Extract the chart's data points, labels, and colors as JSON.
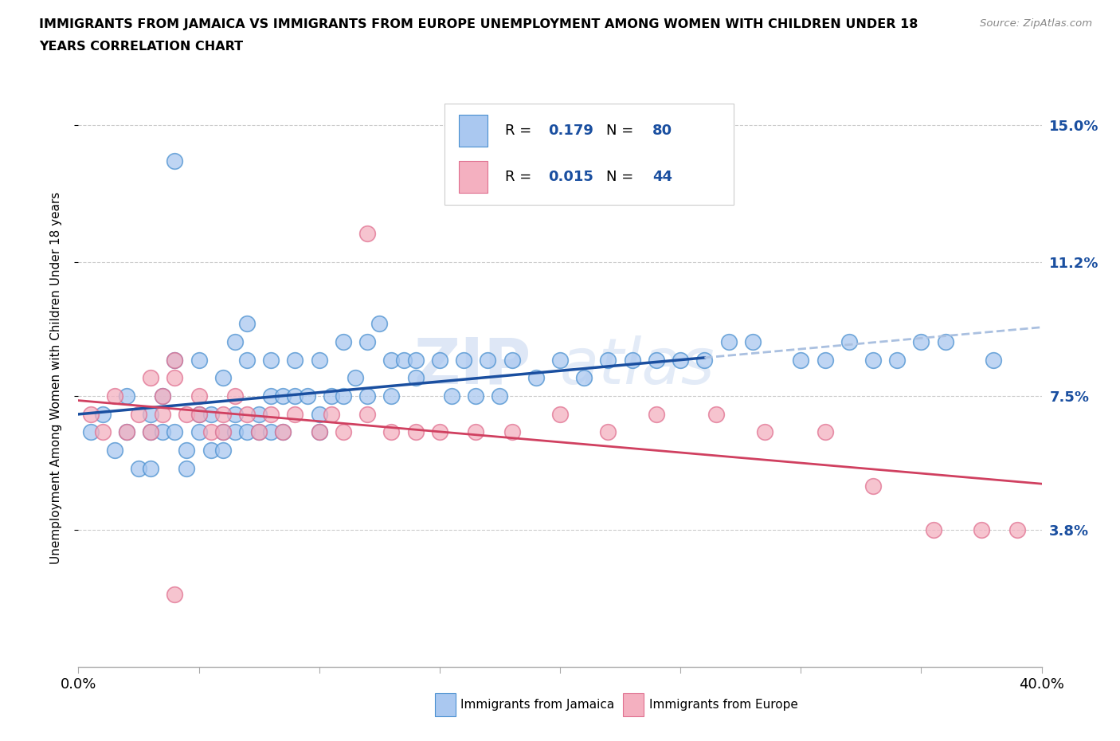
{
  "title_line1": "IMMIGRANTS FROM JAMAICA VS IMMIGRANTS FROM EUROPE UNEMPLOYMENT AMONG WOMEN WITH CHILDREN UNDER 18",
  "title_line2": "YEARS CORRELATION CHART",
  "source": "Source: ZipAtlas.com",
  "ylabel": "Unemployment Among Women with Children Under 18 years",
  "xlim": [
    0.0,
    0.4
  ],
  "ylim": [
    0.0,
    0.16
  ],
  "xticks": [
    0.0,
    0.05,
    0.1,
    0.15,
    0.2,
    0.25,
    0.3,
    0.35,
    0.4
  ],
  "xticklabels_show": [
    "0.0%",
    "",
    "",
    "",
    "",
    "",
    "",
    "",
    "40.0%"
  ],
  "ytick_positions": [
    0.038,
    0.075,
    0.112,
    0.15
  ],
  "ytick_labels": [
    "3.8%",
    "7.5%",
    "11.2%",
    "15.0%"
  ],
  "jamaica_fill_color": "#aac8f0",
  "jamaica_edge_color": "#4a90d0",
  "europe_fill_color": "#f4b0c0",
  "europe_edge_color": "#e07090",
  "trend_line_blue": "#1a4fa0",
  "trend_line_pink": "#d04060",
  "trend_line_dashed_color": "#aac0e0",
  "R_jamaica": 0.179,
  "N_jamaica": 80,
  "R_europe": 0.015,
  "N_europe": 44,
  "legend_label_jamaica": "Immigrants from Jamaica",
  "legend_label_europe": "Immigrants from Europe",
  "watermark_text": "ZIP",
  "watermark_text2": "atlas",
  "background_color": "#ffffff",
  "grid_color": "#cccccc",
  "jamaica_x": [
    0.005,
    0.01,
    0.015,
    0.02,
    0.02,
    0.025,
    0.03,
    0.03,
    0.03,
    0.035,
    0.035,
    0.04,
    0.04,
    0.045,
    0.045,
    0.05,
    0.05,
    0.05,
    0.055,
    0.055,
    0.06,
    0.06,
    0.06,
    0.065,
    0.065,
    0.065,
    0.07,
    0.07,
    0.07,
    0.075,
    0.075,
    0.08,
    0.08,
    0.08,
    0.085,
    0.085,
    0.09,
    0.09,
    0.095,
    0.1,
    0.1,
    0.1,
    0.105,
    0.11,
    0.11,
    0.115,
    0.12,
    0.12,
    0.125,
    0.13,
    0.13,
    0.135,
    0.14,
    0.14,
    0.15,
    0.155,
    0.16,
    0.165,
    0.17,
    0.175,
    0.18,
    0.19,
    0.2,
    0.21,
    0.22,
    0.23,
    0.24,
    0.25,
    0.26,
    0.27,
    0.28,
    0.3,
    0.31,
    0.32,
    0.33,
    0.34,
    0.35,
    0.36,
    0.38,
    0.04
  ],
  "jamaica_y": [
    0.065,
    0.07,
    0.06,
    0.065,
    0.075,
    0.055,
    0.07,
    0.065,
    0.055,
    0.075,
    0.065,
    0.085,
    0.065,
    0.06,
    0.055,
    0.07,
    0.065,
    0.085,
    0.07,
    0.06,
    0.08,
    0.065,
    0.06,
    0.09,
    0.07,
    0.065,
    0.085,
    0.065,
    0.095,
    0.07,
    0.065,
    0.075,
    0.065,
    0.085,
    0.075,
    0.065,
    0.085,
    0.075,
    0.075,
    0.085,
    0.07,
    0.065,
    0.075,
    0.09,
    0.075,
    0.08,
    0.09,
    0.075,
    0.095,
    0.085,
    0.075,
    0.085,
    0.08,
    0.085,
    0.085,
    0.075,
    0.085,
    0.075,
    0.085,
    0.075,
    0.085,
    0.08,
    0.085,
    0.08,
    0.085,
    0.085,
    0.085,
    0.085,
    0.085,
    0.09,
    0.09,
    0.085,
    0.085,
    0.09,
    0.085,
    0.085,
    0.09,
    0.09,
    0.085,
    0.14
  ],
  "europe_x": [
    0.005,
    0.01,
    0.015,
    0.02,
    0.025,
    0.03,
    0.03,
    0.035,
    0.035,
    0.04,
    0.04,
    0.045,
    0.05,
    0.05,
    0.055,
    0.06,
    0.06,
    0.065,
    0.07,
    0.075,
    0.08,
    0.085,
    0.09,
    0.1,
    0.105,
    0.11,
    0.12,
    0.13,
    0.14,
    0.15,
    0.165,
    0.18,
    0.2,
    0.22,
    0.24,
    0.265,
    0.285,
    0.31,
    0.33,
    0.355,
    0.375,
    0.39,
    0.12,
    0.04
  ],
  "europe_y": [
    0.07,
    0.065,
    0.075,
    0.065,
    0.07,
    0.065,
    0.08,
    0.075,
    0.07,
    0.085,
    0.08,
    0.07,
    0.075,
    0.07,
    0.065,
    0.065,
    0.07,
    0.075,
    0.07,
    0.065,
    0.07,
    0.065,
    0.07,
    0.065,
    0.07,
    0.065,
    0.07,
    0.065,
    0.065,
    0.065,
    0.065,
    0.065,
    0.07,
    0.065,
    0.07,
    0.07,
    0.065,
    0.065,
    0.05,
    0.038,
    0.038,
    0.038,
    0.12,
    0.02
  ]
}
